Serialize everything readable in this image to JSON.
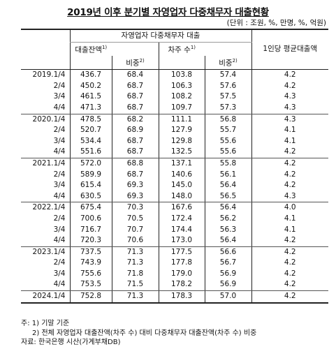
{
  "title": "2019년 이후 분기별 자영업자 다중채무자 대출현황",
  "unit": "(단위 : 조원, %, 만명, %, 억원)",
  "header": {
    "group": "자영업자 다중채무자 대출",
    "loan_balance": "대출잔액",
    "loan_balance_note": "1)",
    "share1": "비중",
    "share1_note": "2)",
    "borrowers": "차주 수",
    "borrowers_note": "1)",
    "share2": "비중",
    "share2_note": "2)",
    "avg_loan": "1인당 평균대출액"
  },
  "rows": [
    {
      "q": "2019.1/4",
      "a": "436.7",
      "b": "68.4",
      "c": "103.8",
      "d": "57.4",
      "e": "4.2"
    },
    {
      "q": "2/4",
      "a": "450.2",
      "b": "68.7",
      "c": "106.3",
      "d": "57.6",
      "e": "4.2"
    },
    {
      "q": "3/4",
      "a": "461.5",
      "b": "68.7",
      "c": "108.2",
      "d": "57.5",
      "e": "4.3"
    },
    {
      "q": "4/4",
      "a": "471.3",
      "b": "68.7",
      "c": "109.7",
      "d": "57.3",
      "e": "4.3"
    },
    {
      "q": "2020.1/4",
      "a": "478.5",
      "b": "68.2",
      "c": "111.1",
      "d": "56.8",
      "e": "4.3"
    },
    {
      "q": "2/4",
      "a": "520.7",
      "b": "68.9",
      "c": "127.9",
      "d": "55.7",
      "e": "4.1"
    },
    {
      "q": "3/4",
      "a": "534.4",
      "b": "68.7",
      "c": "129.8",
      "d": "55.6",
      "e": "4.1"
    },
    {
      "q": "4/4",
      "a": "551.6",
      "b": "68.7",
      "c": "132.5",
      "d": "55.6",
      "e": "4.2"
    },
    {
      "q": "2021.1/4",
      "a": "572.0",
      "b": "68.8",
      "c": "137.1",
      "d": "55.8",
      "e": "4.2"
    },
    {
      "q": "2/4",
      "a": "589.9",
      "b": "68.7",
      "c": "140.6",
      "d": "56.1",
      "e": "4.2"
    },
    {
      "q": "3/4",
      "a": "615.4",
      "b": "69.3",
      "c": "145.0",
      "d": "56.4",
      "e": "4.2"
    },
    {
      "q": "4/4",
      "a": "630.5",
      "b": "69.3",
      "c": "148.0",
      "d": "56.5",
      "e": "4.3"
    },
    {
      "q": "2022.1/4",
      "a": "675.4",
      "b": "70.3",
      "c": "167.6",
      "d": "56.4",
      "e": "4.0"
    },
    {
      "q": "2/4",
      "a": "700.6",
      "b": "70.5",
      "c": "172.4",
      "d": "56.2",
      "e": "4.1"
    },
    {
      "q": "3/4",
      "a": "716.7",
      "b": "70.7",
      "c": "174.4",
      "d": "56.3",
      "e": "4.1"
    },
    {
      "q": "4/4",
      "a": "720.3",
      "b": "70.6",
      "c": "173.0",
      "d": "56.4",
      "e": "4.2"
    },
    {
      "q": "2023.1/4",
      "a": "737.5",
      "b": "71.3",
      "c": "177.5",
      "d": "56.6",
      "e": "4.2"
    },
    {
      "q": "2/4",
      "a": "743.9",
      "b": "71.3",
      "c": "177.8",
      "d": "56.7",
      "e": "4.2"
    },
    {
      "q": "3/4",
      "a": "755.6",
      "b": "71.8",
      "c": "179.0",
      "d": "56.9",
      "e": "4.2"
    },
    {
      "q": "4/4",
      "a": "753.5",
      "b": "71.5",
      "c": "178.2",
      "d": "56.9",
      "e": "4.2"
    },
    {
      "q": "2024.1/4",
      "a": "752.8",
      "b": "71.3",
      "c": "178.3",
      "d": "57.0",
      "e": "4.2"
    }
  ],
  "notes": {
    "note1": "주: 1) 기말 기준",
    "note2": "2) 전체 자영업자 대출잔액(차주 수) 대비 다중채무자 대출잔액(차주 수) 비중",
    "source": "자료: 한국은행 시산(가계부채DB)"
  }
}
